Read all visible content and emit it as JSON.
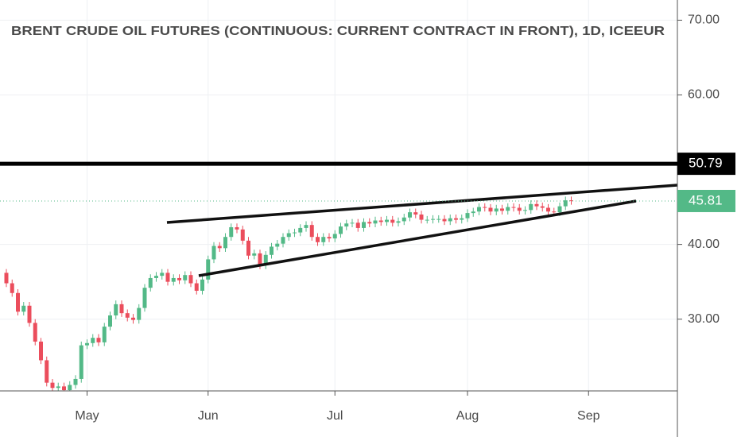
{
  "chart_data": {
    "type": "candlestick",
    "title": "BRENT CRUDE OIL FUTURES (CONTINUOUS: CURRENT CONTRACT IN FRONT), 1D, ICEEUR",
    "categories": [
      null,
      null,
      null,
      null,
      null,
      null,
      null,
      null,
      null,
      null,
      null,
      null,
      null,
      null,
      "May",
      null,
      null,
      null,
      null,
      null,
      null,
      null,
      null,
      null,
      null,
      null,
      null,
      null,
      null,
      null,
      null,
      null,
      null,
      null,
      null,
      "Jun",
      null,
      null,
      null,
      null,
      null,
      null,
      null,
      null,
      null,
      null,
      null,
      null,
      null,
      null,
      null,
      null,
      null,
      null,
      null,
      null,
      null,
      "Jul",
      null,
      null,
      null,
      null,
      null,
      null,
      null,
      null,
      null,
      null,
      null,
      null,
      null,
      null,
      null,
      null,
      null,
      null,
      null,
      null,
      null,
      null,
      "Aug",
      null,
      null,
      null,
      null,
      null,
      null,
      null,
      null,
      null,
      null,
      null,
      null,
      null,
      null,
      null,
      null,
      null,
      null,
      null,
      null,
      "Sep",
      null,
      null,
      null,
      null,
      null,
      null,
      null,
      null,
      null,
      null,
      null,
      null,
      null,
      null,
      null
    ],
    "open": [
      36.2,
      34.8,
      33.5,
      31.0,
      31.8,
      29.5,
      27.0,
      24.5,
      21.5,
      20.8,
      21.0,
      20.5,
      21.2,
      22.0,
      26.5,
      26.8,
      27.5,
      26.9,
      29.0,
      30.5,
      32.0,
      30.8,
      30.2,
      29.9,
      31.5,
      34.2,
      35.5,
      35.8,
      36.2,
      35.0,
      35.5,
      35.2,
      35.9,
      34.8,
      33.8,
      35.3,
      38.0,
      39.8,
      39.5,
      41.0,
      42.3,
      42.0,
      40.5,
      38.5,
      38.8,
      37.2,
      38.6,
      39.7,
      40.1,
      41.0,
      41.5,
      41.6,
      42.2,
      42.6,
      41.0,
      40.3,
      41.0,
      40.8,
      41.4,
      42.4,
      42.8,
      42.9,
      42.2,
      43.0,
      42.8,
      43.2,
      43.0,
      43.3,
      42.9,
      43.1,
      43.6,
      44.3,
      44.0,
      43.3,
      43.3,
      43.4,
      43.4,
      43.1,
      43.5,
      43.3,
      43.5,
      44.2,
      44.4,
      45.0,
      44.9,
      44.4,
      44.8,
      44.5,
      45.0,
      44.9,
      44.5,
      44.6,
      45.4,
      45.1,
      44.9,
      44.4,
      44.3,
      45.1,
      45.9,
      null,
      null,
      null,
      null,
      null,
      null,
      null,
      null,
      null,
      null,
      null,
      null,
      null,
      null,
      null,
      null,
      null,
      null
    ],
    "high": [
      36.7,
      35.3,
      34.0,
      32.3,
      32.3,
      30.0,
      27.5,
      25.0,
      22.0,
      21.5,
      21.5,
      21.7,
      22.5,
      27.0,
      27.3,
      28.0,
      28.0,
      29.5,
      31.0,
      32.5,
      32.5,
      31.3,
      30.7,
      32.0,
      34.7,
      36.0,
      36.3,
      36.7,
      36.7,
      36.0,
      36.0,
      36.4,
      36.4,
      35.3,
      35.8,
      38.5,
      40.3,
      40.3,
      41.5,
      42.8,
      42.8,
      42.5,
      41.0,
      39.3,
      39.3,
      39.1,
      40.2,
      40.6,
      41.5,
      42.0,
      42.1,
      42.7,
      43.1,
      43.1,
      41.5,
      41.5,
      41.5,
      41.9,
      42.9,
      43.3,
      43.4,
      43.4,
      43.5,
      43.5,
      43.7,
      43.7,
      43.8,
      43.8,
      43.6,
      44.1,
      44.8,
      44.8,
      44.5,
      43.8,
      43.9,
      43.9,
      43.9,
      44.0,
      44.0,
      44.0,
      44.7,
      44.9,
      45.5,
      45.5,
      45.4,
      45.3,
      45.3,
      45.5,
      45.5,
      45.4,
      45.1,
      45.9,
      45.9,
      45.6,
      45.4,
      44.9,
      45.6,
      46.4,
      46.4,
      null,
      null,
      null,
      null,
      null,
      null,
      null,
      null,
      null,
      null,
      null,
      null,
      null,
      null,
      null,
      null,
      null,
      null
    ],
    "low": [
      34.3,
      33.0,
      30.5,
      30.5,
      29.0,
      26.5,
      24.0,
      21.0,
      20.3,
      20.3,
      20.0,
      20.0,
      20.7,
      21.5,
      26.0,
      26.3,
      26.4,
      26.4,
      28.5,
      30.0,
      30.3,
      29.7,
      29.4,
      29.4,
      31.0,
      33.7,
      35.0,
      35.3,
      34.5,
      34.5,
      34.7,
      34.7,
      34.3,
      33.3,
      33.3,
      34.8,
      37.5,
      39.0,
      39.0,
      40.5,
      41.5,
      40.0,
      38.0,
      38.0,
      36.7,
      36.7,
      38.1,
      39.2,
      39.6,
      40.5,
      41.0,
      41.1,
      41.7,
      40.5,
      39.8,
      39.8,
      40.3,
      40.3,
      40.9,
      41.9,
      42.3,
      41.7,
      41.7,
      42.3,
      42.3,
      42.5,
      42.5,
      42.4,
      42.4,
      42.6,
      43.1,
      43.5,
      42.8,
      42.8,
      42.8,
      42.9,
      42.6,
      42.6,
      42.8,
      42.8,
      43.0,
      43.7,
      43.9,
      44.4,
      43.9,
      43.9,
      44.0,
      44.0,
      44.4,
      44.0,
      44.0,
      44.1,
      44.6,
      44.4,
      43.9,
      43.8,
      43.8,
      44.6,
      45.31,
      null,
      null,
      null,
      null,
      null,
      null,
      null,
      null,
      null,
      null,
      null,
      null,
      null,
      null,
      null,
      null,
      null,
      null
    ],
    "close": [
      34.8,
      33.5,
      31.0,
      31.8,
      29.5,
      27.0,
      24.5,
      21.5,
      20.8,
      21.0,
      20.5,
      21.2,
      22.0,
      26.5,
      26.8,
      27.5,
      26.9,
      29.0,
      30.5,
      32.0,
      30.8,
      30.2,
      29.9,
      31.5,
      34.2,
      35.5,
      35.8,
      36.2,
      35.0,
      35.5,
      35.2,
      35.9,
      34.8,
      33.8,
      35.3,
      38.0,
      39.8,
      39.5,
      41.0,
      42.3,
      42.0,
      40.5,
      38.5,
      38.8,
      37.2,
      38.6,
      39.7,
      40.1,
      41.0,
      41.5,
      41.6,
      42.2,
      42.6,
      41.0,
      40.3,
      41.0,
      40.8,
      41.4,
      42.4,
      42.8,
      42.9,
      42.2,
      43.0,
      42.8,
      43.2,
      43.0,
      43.3,
      42.9,
      43.1,
      43.6,
      44.3,
      44.0,
      43.3,
      43.3,
      43.4,
      43.4,
      43.1,
      43.5,
      43.3,
      43.5,
      44.2,
      44.4,
      45.0,
      44.9,
      44.4,
      44.8,
      44.5,
      45.0,
      44.9,
      44.5,
      44.6,
      45.4,
      45.1,
      44.9,
      44.4,
      44.3,
      45.1,
      45.9,
      45.81,
      null,
      null,
      null,
      null,
      null,
      null,
      null,
      null,
      null,
      null,
      null,
      null,
      null,
      null,
      null,
      null,
      null,
      null
    ],
    "up_color": "#53b987",
    "down_color": "#eb4d5c",
    "ylim": [
      20.4,
      72.7
    ],
    "yticks": [
      {
        "value": 30,
        "label": "30.00"
      },
      {
        "value": 40,
        "label": "40.00"
      },
      {
        "value": 60,
        "label": "60.00"
      },
      {
        "value": 70,
        "label": "70.00"
      }
    ],
    "grid": true,
    "horizontal_line": 50.79
  }
}
